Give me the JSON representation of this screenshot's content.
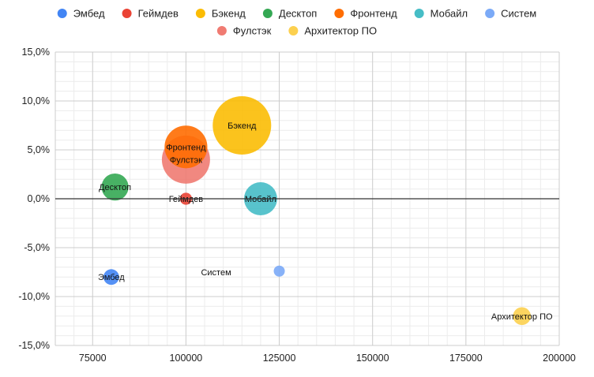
{
  "chart_data": {
    "type": "bubble",
    "title": "",
    "xlabel": "",
    "ylabel": "",
    "xlim": [
      65000,
      200000
    ],
    "ylim": [
      -15,
      15
    ],
    "x_ticks": [
      75000,
      100000,
      125000,
      150000,
      175000,
      200000
    ],
    "x_tick_labels": [
      "75000",
      "100000",
      "125000",
      "150000",
      "175000",
      "200000"
    ],
    "y_ticks": [
      15,
      10,
      5,
      0,
      -5,
      -10,
      -15
    ],
    "y_tick_labels": [
      "15,0%",
      "10,0%",
      "5,0%",
      "0,0%",
      "-5,0%",
      "-10,0%",
      "-15,0%"
    ],
    "grid": true,
    "legend_position": "top",
    "series": [
      {
        "name": "Эмбед",
        "label": "Эмбед",
        "color": "#4285f4",
        "x": 80000,
        "y": -8.0,
        "size": 1.0
      },
      {
        "name": "Геймдев",
        "label": "Геймдев",
        "color": "#ea4335",
        "x": 100000,
        "y": 0.0,
        "size": 0.6
      },
      {
        "name": "Бэкенд",
        "label": "Бэкенд",
        "color": "#fbbc04",
        "x": 115000,
        "y": 7.5,
        "size": 14.0
      },
      {
        "name": "Десктоп",
        "label": "Десктоп",
        "color": "#34a853",
        "x": 81000,
        "y": 1.2,
        "size": 3.0
      },
      {
        "name": "Фронтенд",
        "label": "Фронтенд",
        "color": "#ff6d01",
        "x": 100000,
        "y": 5.3,
        "size": 7.5
      },
      {
        "name": "Мобайл",
        "label": "Мобайл",
        "color": "#46bdc6",
        "x": 120000,
        "y": 0.0,
        "size": 4.5
      },
      {
        "name": "Систем",
        "label": "Систем",
        "color": "#7baaf7",
        "x": 125000,
        "y": -7.4,
        "size": 0.5
      },
      {
        "name": "Фулстэк",
        "label": "Фулстэк",
        "color": "#f07b72",
        "x": 100000,
        "y": 4.0,
        "size": 9.5
      },
      {
        "name": "Архитектор ПО",
        "label": "Архитектор ПО",
        "color": "#fcd04f",
        "x": 190000,
        "y": -12.0,
        "size": 1.3
      }
    ]
  }
}
